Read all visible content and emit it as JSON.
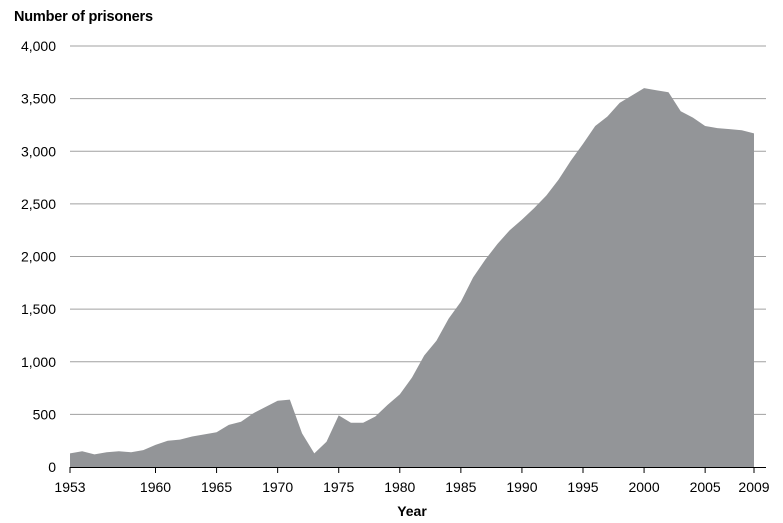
{
  "chart_data": {
    "type": "area",
    "title": "",
    "ylabel": "Number of prisoners",
    "xlabel": "Year",
    "xlim": [
      1953,
      2009
    ],
    "ylim": [
      0,
      4000
    ],
    "grid": "horizontal",
    "fill_color": "#939598",
    "grid_color": "#a0a0a0",
    "x_tick_labels": [
      "1953",
      "1960",
      "1965",
      "1970",
      "1975",
      "1980",
      "1985",
      "1990",
      "1995",
      "2000",
      "2005",
      "2009"
    ],
    "y_tick_labels": [
      "0",
      "500",
      "1,000",
      "1,500",
      "2,000",
      "2,500",
      "3,000",
      "3,500",
      "4,000"
    ],
    "x_tick_values": [
      1953,
      1960,
      1965,
      1970,
      1975,
      1980,
      1985,
      1990,
      1995,
      2000,
      2005,
      2009
    ],
    "y_tick_values": [
      0,
      500,
      1000,
      1500,
      2000,
      2500,
      3000,
      3500,
      4000
    ],
    "x": [
      1953,
      1954,
      1955,
      1956,
      1957,
      1958,
      1959,
      1960,
      1961,
      1962,
      1963,
      1964,
      1965,
      1966,
      1967,
      1968,
      1969,
      1970,
      1971,
      1972,
      1973,
      1974,
      1975,
      1976,
      1977,
      1978,
      1979,
      1980,
      1981,
      1982,
      1983,
      1984,
      1985,
      1986,
      1987,
      1988,
      1989,
      1990,
      1991,
      1992,
      1993,
      1994,
      1995,
      1996,
      1997,
      1998,
      1999,
      2000,
      2001,
      2002,
      2003,
      2004,
      2005,
      2006,
      2007,
      2008,
      2009
    ],
    "values": [
      130,
      150,
      120,
      140,
      150,
      140,
      160,
      210,
      250,
      260,
      290,
      310,
      330,
      400,
      430,
      510,
      570,
      630,
      640,
      320,
      130,
      240,
      490,
      420,
      420,
      480,
      590,
      690,
      850,
      1060,
      1200,
      1410,
      1570,
      1800,
      1970,
      2120,
      2250,
      2350,
      2460,
      2580,
      2730,
      2910,
      3070,
      3240,
      3330,
      3460,
      3530,
      3600,
      3580,
      3560,
      3380,
      3320,
      3240,
      3220,
      3210,
      3200,
      3170
    ]
  }
}
